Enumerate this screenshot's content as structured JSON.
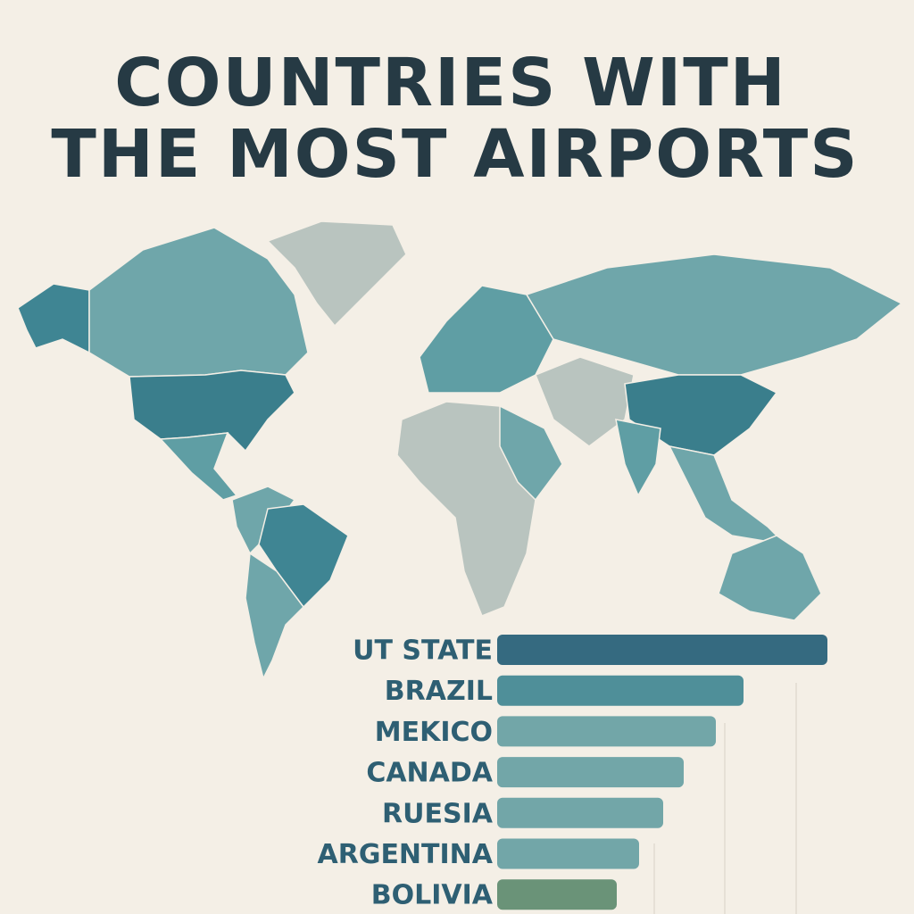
{
  "chart_data": {
    "type": "bar",
    "orientation": "horizontal",
    "title": [
      "COUNTRIES WITH",
      "THE MOST AIRPORTS"
    ],
    "categories": [
      "UT STATE",
      "BRAZIL",
      "MEKICO",
      "CANADA",
      "RUESIA",
      "ARGENTINA",
      "BOLIVIA"
    ],
    "values": [
      370,
      276,
      245,
      209,
      186,
      159,
      134
    ],
    "colors": [
      "#356a80",
      "#4f8f99",
      "#72a6a8",
      "#72a6a8",
      "#72a6a8",
      "#72a6a8",
      "#6a9378"
    ]
  }
}
